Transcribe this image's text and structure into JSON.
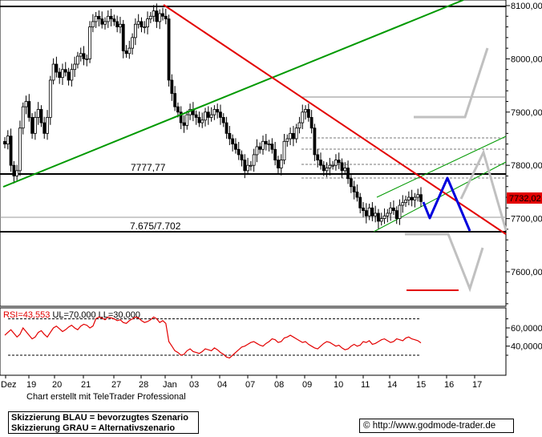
{
  "chart_data": {
    "type": "candlestick",
    "y_axis_ticks": [
      "8100,00",
      "8000,00",
      "7900,00",
      "7800,00",
      "7700,00",
      "7600,00"
    ],
    "ylim": [
      7520,
      8112
    ],
    "x_axis_ticks": [
      "Dez",
      "19",
      "20",
      "21",
      "27",
      "28",
      "Jan",
      "03",
      "04",
      "07",
      "08",
      "09",
      "10",
      "11",
      "14",
      "15",
      "16",
      "17"
    ],
    "current_price_label": "7732,02",
    "horizontal_levels": [
      {
        "value": 8095,
        "color": "#000000"
      },
      {
        "value": 7777.77,
        "label": "7777,77",
        "color": "#000000"
      },
      {
        "value": 7675,
        "label": "7.675/7.702",
        "color": "#000000"
      }
    ],
    "rsi": {
      "label": "RSI=43,553 UL=70,000 LL=30,000",
      "ticks": [
        "60,0000",
        "40,0000"
      ],
      "ylim": [
        8,
        82
      ],
      "upper_level": 70,
      "lower_level": 30,
      "last_value": 43.553
    },
    "scenarios": {
      "blue": "bevorzugtes Szenario",
      "grey": "Alternativszenario"
    }
  },
  "credit": "Chart erstellt mit TeleTrader Professional",
  "legend": {
    "line1": "Skizzierung BLAU = bevorzugtes Szenario",
    "line2": "Skizzierung GRAU = Alternativszenario"
  },
  "source": {
    "copyright_symbol": "©",
    "url": "http://www.godmode-trader.de"
  },
  "colors": {
    "trend_red": "#e30000",
    "trend_green": "#009900",
    "scenario_blue": "#0000dd",
    "scenario_grey": "#c0c0c0",
    "price_label_bg": "#e30000"
  }
}
